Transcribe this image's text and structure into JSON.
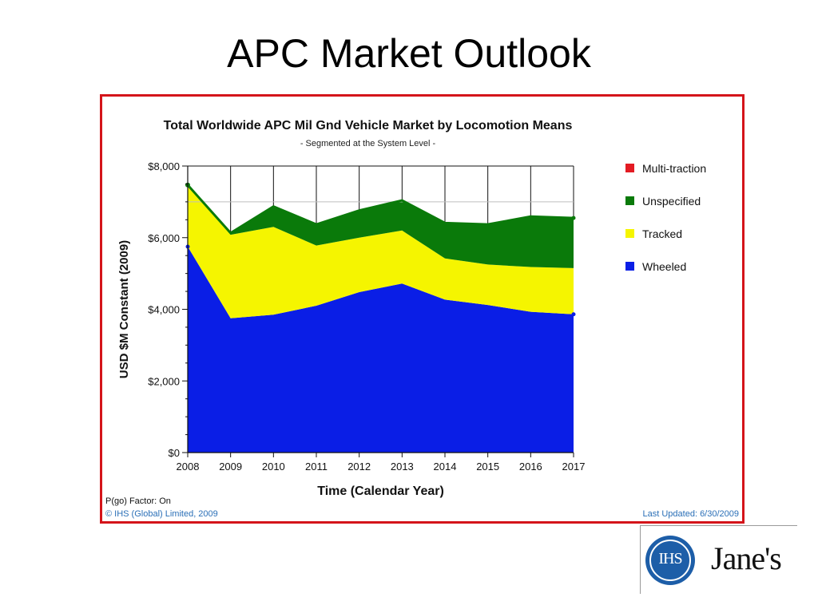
{
  "slide": {
    "title": "APC Market Outlook"
  },
  "colors": {
    "frame": "#d4141a",
    "multi_traction": "#e31b23",
    "unspecified": "#0a7a0a",
    "tracked": "#f5f500",
    "wheeled": "#0a1ee6",
    "footnote_blue": "#2a6fb7"
  },
  "chart_data": {
    "type": "area",
    "stacked": true,
    "title": "Total Worldwide APC Mil Gnd Vehicle Market by Locomotion Means",
    "subtitle": "- Segmented at the System Level -",
    "xlabel": "Time (Calendar Year)",
    "ylabel": "USD $M Constant (2009)",
    "x": [
      "2008",
      "2009",
      "2010",
      "2011",
      "2012",
      "2013",
      "2014",
      "2015",
      "2016",
      "2017"
    ],
    "ylim": [
      0,
      8000
    ],
    "yticks": [
      0,
      2000,
      4000,
      6000,
      8000
    ],
    "ytick_labels": [
      "$0",
      "$2,000",
      "$4,000",
      "$6,000",
      "$8,000"
    ],
    "grid": "vertical lines at each year; horizontal line at $7,000",
    "legend_position": "right",
    "series": [
      {
        "name": "Wheeled",
        "color": "#0a1ee6",
        "values": [
          5750,
          3750,
          3850,
          4100,
          4480,
          4720,
          4270,
          4120,
          3930,
          3860
        ]
      },
      {
        "name": "Tracked",
        "color": "#f5f500",
        "values": [
          1720,
          2330,
          2450,
          1680,
          1520,
          1480,
          1150,
          1130,
          1250,
          1290
        ]
      },
      {
        "name": "Unspecified",
        "color": "#0a7a0a",
        "values": [
          0,
          50,
          570,
          590,
          760,
          840,
          990,
          1120,
          1410,
          1400
        ]
      },
      {
        "name": "Multi-traction",
        "color": "#e31b23",
        "values": [
          0,
          0,
          0,
          0,
          0,
          0,
          0,
          0,
          0,
          0
        ]
      }
    ],
    "legend": [
      "Multi-traction",
      "Unspecified",
      "Tracked",
      "Wheeled"
    ]
  },
  "footer": {
    "pgo": "P(go) Factor: On",
    "copyright": "© IHS (Global) Limited, 2009",
    "updated": "Last Updated: 6/30/2009"
  },
  "logo": {
    "ihs": "IHS",
    "janes": "Jane's"
  }
}
